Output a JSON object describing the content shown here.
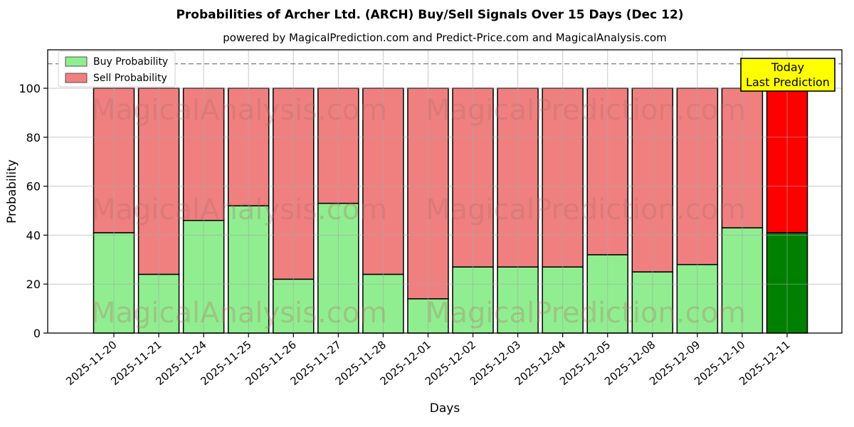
{
  "header": {
    "title": "Probabilities of Archer Ltd. (ARCH) Buy/Sell Signals Over 15 Days (Dec 12)",
    "subtitle": "powered by MagicalPrediction.com and Predict-Price.com and MagicalAnalysis.com"
  },
  "chart_data": {
    "type": "bar",
    "stacked": true,
    "title": "Probabilities of Archer Ltd. (ARCH) Buy/Sell Signals Over 15 Days (Dec 12)",
    "xlabel": "Days",
    "ylabel": "Probability",
    "categories": [
      "2025-11-20",
      "2025-11-21",
      "2025-11-24",
      "2025-11-25",
      "2025-11-26",
      "2025-11-27",
      "2025-11-28",
      "2025-12-01",
      "2025-12-02",
      "2025-12-03",
      "2025-12-04",
      "2025-12-05",
      "2025-12-08",
      "2025-12-09",
      "2025-12-10",
      "2025-12-11"
    ],
    "series": [
      {
        "name": "Buy Probability",
        "color": "#90ee90",
        "today_color": "#008000",
        "values": [
          41,
          24,
          46,
          52,
          22,
          53,
          24,
          14,
          27,
          27,
          27,
          32,
          25,
          28,
          43,
          41
        ]
      },
      {
        "name": "Sell Probability",
        "color": "#f08080",
        "today_color": "#ff0000",
        "values": [
          59,
          76,
          54,
          48,
          78,
          47,
          76,
          86,
          73,
          73,
          73,
          68,
          75,
          72,
          57,
          59
        ]
      }
    ],
    "yticks": [
      0,
      20,
      40,
      60,
      80,
      100
    ],
    "ylim": [
      0,
      116
    ],
    "dashed_guide_y": 110,
    "grid": true,
    "legend_position": "upper left",
    "today_index": 15
  },
  "annotation": {
    "line1": "Today",
    "line2": "Last Prediction",
    "bg_color": "#ffff00"
  },
  "watermark": {
    "left_text": "MagicalAnalysis.com",
    "right_text": "MagicalPrediction.com",
    "color": "#b36b6b"
  }
}
